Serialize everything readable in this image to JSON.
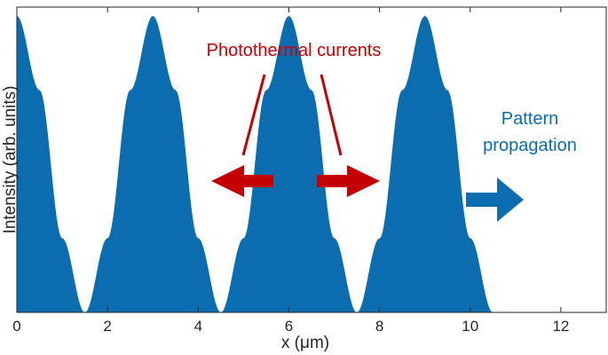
{
  "chart_data": {
    "type": "area",
    "title": "",
    "xlabel": "x (μm)",
    "ylabel": "Intensity (arb. units)",
    "xlim": [
      0,
      13
    ],
    "xticks": [
      0,
      2,
      4,
      6,
      8,
      10,
      12
    ],
    "ylim": [
      0,
      1.03
    ],
    "grid": false,
    "series": [
      {
        "color": "#0b6db0",
        "x": [
          0.0,
          0.5,
          1.0,
          1.5,
          2.0,
          2.5,
          3.0,
          3.5,
          4.0,
          4.5,
          5.0,
          5.5,
          6.0,
          6.5,
          7.0,
          7.5,
          8.0,
          8.5,
          9.0,
          9.5,
          10.0,
          10.5
        ],
        "values": [
          1.0,
          0.75,
          0.25,
          0.0,
          0.25,
          0.75,
          1.0,
          0.75,
          0.25,
          0.0,
          0.25,
          0.75,
          1.0,
          0.75,
          0.25,
          0.0,
          0.25,
          0.75,
          1.0,
          0.75,
          0.25,
          0.0
        ]
      }
    ],
    "annotations": [
      {
        "text": "Photothermal currents",
        "color": "#c40000"
      },
      {
        "text": "Pattern",
        "color": "#0b6db0"
      },
      {
        "text": "propagation",
        "color": "#0b6db0"
      }
    ]
  }
}
